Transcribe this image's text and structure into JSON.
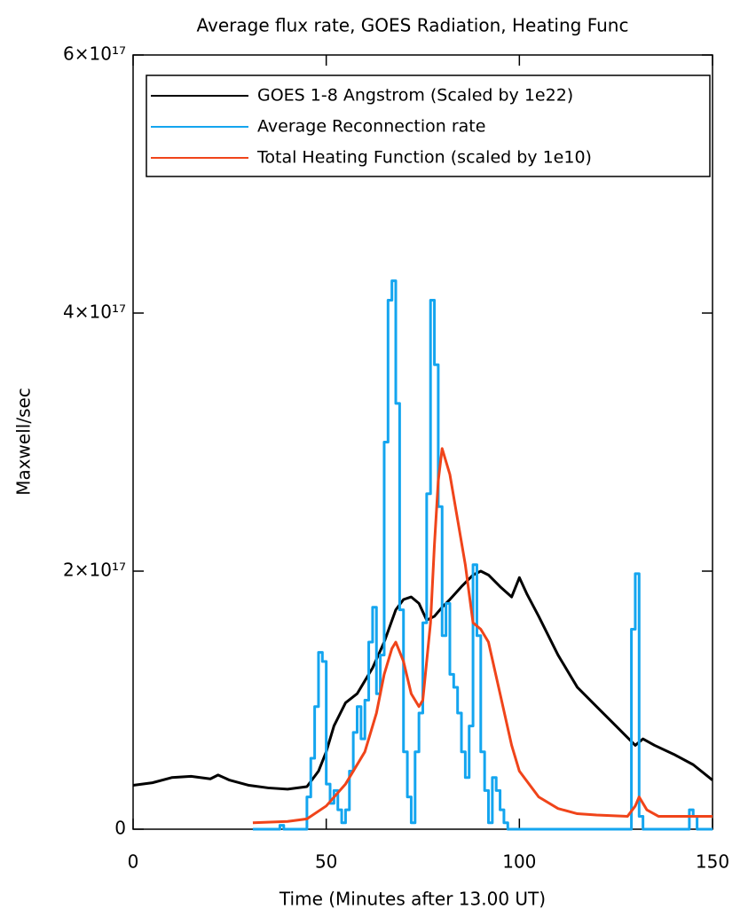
{
  "chart_data": {
    "type": "line",
    "title": "Average flux rate, GOES Radiation, Heating Func",
    "x_label": "Time (Minutes after 13.00 UT)",
    "y_label": "Maxwell/sec",
    "xlim": [
      0,
      150
    ],
    "xticks": [
      0,
      50,
      100,
      150
    ],
    "ylim": [
      0,
      6e+17
    ],
    "yticks": [
      0,
      {
        "value": 2e+17,
        "label": "2×10¹⁷"
      },
      {
        "value": 4e+17,
        "label": "4×10¹⁷"
      },
      {
        "value": 6e+17,
        "label": "6×10¹⁷"
      }
    ],
    "legend": "top-right",
    "series": [
      {
        "name": "GOES 1-8 Angstrom (Scaled by 1e22)",
        "color": "#000000",
        "step": false,
        "x": [
          0,
          5,
          10,
          15,
          20,
          22,
          25,
          30,
          35,
          40,
          45,
          48,
          50,
          52,
          55,
          58,
          60,
          62,
          65,
          68,
          70,
          72,
          74,
          76,
          78,
          80,
          82,
          85,
          88,
          90,
          92,
          95,
          98,
          100,
          102,
          105,
          110,
          115,
          120,
          125,
          130,
          132,
          135,
          140,
          145,
          150
        ],
        "values": [
          3.4e+16,
          3.6e+16,
          4e+16,
          4.1e+16,
          3.9e+16,
          4.2e+16,
          3.8e+16,
          3.4e+16,
          3.2e+16,
          3.1e+16,
          3.3e+16,
          4.5e+16,
          6e+16,
          8e+16,
          9.8e+16,
          1.05e+17,
          1.15e+17,
          1.25e+17,
          1.45e+17,
          1.7e+17,
          1.78e+17,
          1.8e+17,
          1.75e+17,
          1.62e+17,
          1.65e+17,
          1.72e+17,
          1.78e+17,
          1.88e+17,
          1.97e+17,
          2e+17,
          1.97e+17,
          1.88e+17,
          1.8e+17,
          1.95e+17,
          1.82e+17,
          1.65e+17,
          1.35e+17,
          1.1e+17,
          9.5e+16,
          8e+16,
          6.5e+16,
          7e+16,
          6.5e+16,
          5.8e+16,
          5e+16,
          3.8e+16
        ]
      },
      {
        "name": "Average Reconnection rate",
        "color": "#14a5ef",
        "step": true,
        "x": [
          31,
          38,
          39,
          45,
          46,
          47,
          48,
          49,
          50,
          51,
          52,
          53,
          54,
          55,
          56,
          57,
          58,
          59,
          60,
          61,
          62,
          63,
          64,
          65,
          66,
          67,
          68,
          69,
          70,
          71,
          72,
          73,
          74,
          75,
          76,
          77,
          78,
          79,
          80,
          81,
          82,
          83,
          84,
          85,
          86,
          87,
          88,
          89,
          90,
          91,
          92,
          93,
          94,
          95,
          96,
          97,
          129,
          130,
          131,
          132,
          144,
          145,
          146,
          150
        ],
        "values": [
          0,
          3000000000000000.0,
          0,
          2.5e+16,
          5.5e+16,
          9.5e+16,
          1.37e+17,
          1.3e+17,
          3.5e+16,
          2e+16,
          3e+16,
          1.5e+16,
          5000000000000000.0,
          1.5e+16,
          4.5e+16,
          7.5e+16,
          9.5e+16,
          7e+16,
          1e+17,
          1.45e+17,
          1.72e+17,
          1.05e+17,
          1.35e+17,
          3e+17,
          4.1e+17,
          4.25e+17,
          3.3e+17,
          1.7e+17,
          6e+16,
          2.5e+16,
          5000000000000000.0,
          6e+16,
          9e+16,
          1.6e+17,
          2.6e+17,
          4.1e+17,
          3.6e+17,
          2.5e+17,
          1.5e+17,
          1.75e+17,
          1.2e+17,
          1.1e+17,
          9e+16,
          6e+16,
          4e+16,
          8e+16,
          2.05e+17,
          1.5e+17,
          6e+16,
          3e+16,
          5000000000000000.0,
          4e+16,
          3e+16,
          1.5e+16,
          5000000000000000.0,
          0,
          1.55e+17,
          1.98e+17,
          1e+16,
          0,
          1.5e+16,
          1e+16,
          0,
          0
        ]
      },
      {
        "name": "Total Heating Function (scaled by 1e10)",
        "color": "#f0441a",
        "step": false,
        "x": [
          31,
          40,
          45,
          50,
          55,
          60,
          63,
          65,
          67,
          68,
          70,
          72,
          74,
          75,
          77,
          78,
          79,
          80,
          82,
          84,
          86,
          88,
          90,
          92,
          95,
          98,
          100,
          105,
          110,
          115,
          120,
          128,
          130,
          131,
          133,
          136,
          150
        ],
        "values": [
          5000000000000000.0,
          6000000000000000.0,
          8000000000000000.0,
          1.8e+16,
          3.5e+16,
          6e+16,
          9e+16,
          1.2e+17,
          1.4e+17,
          1.45e+17,
          1.3e+17,
          1.05e+17,
          9.5e+16,
          1e+17,
          1.6e+17,
          2.2e+17,
          2.7e+17,
          2.95e+17,
          2.75e+17,
          2.4e+17,
          2.05e+17,
          1.6e+17,
          1.55e+17,
          1.45e+17,
          1.05e+17,
          6.5e+16,
          4.5e+16,
          2.5e+16,
          1.6e+16,
          1.2e+16,
          1.1e+16,
          1e+16,
          1.8e+16,
          2.5e+16,
          1.5e+16,
          1e+16,
          1e+16
        ]
      }
    ]
  }
}
